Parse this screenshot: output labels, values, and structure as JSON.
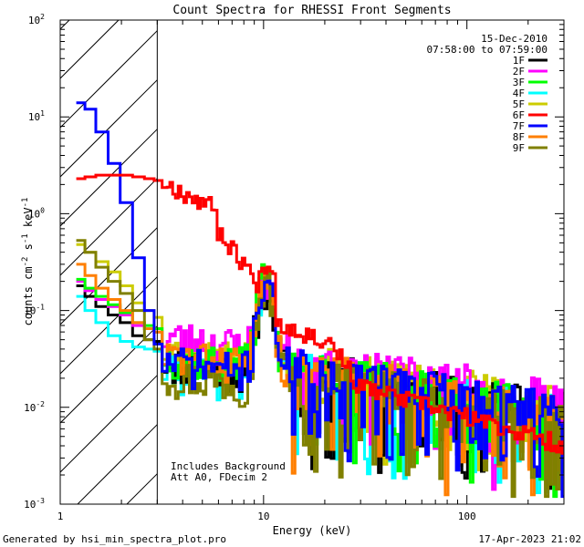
{
  "chart_data": {
    "type": "line",
    "title": "Count Spectra for RHESSI Front Segments",
    "xlabel": "Energy (keV)",
    "ylabel": "counts cm",
    "ylabel_parts": {
      "base": "counts cm",
      "exp1": "-2",
      "mid": " s",
      "exp2": "-1",
      "unit": " keV",
      "exp3": "-1"
    },
    "xscale": "log",
    "yscale": "log",
    "xlim": [
      1,
      300
    ],
    "ylim": [
      0.001,
      100
    ],
    "x_ticks": [
      {
        "value": 1,
        "label": "1"
      },
      {
        "value": 10,
        "label": "10"
      },
      {
        "value": 100,
        "label": "100"
      }
    ],
    "y_ticks": [
      {
        "value": 0.001,
        "base": "10",
        "exp": "-3"
      },
      {
        "value": 0.01,
        "base": "10",
        "exp": "-2"
      },
      {
        "value": 0.1,
        "base": "10",
        "exp": "-1"
      },
      {
        "value": 1,
        "base": "10",
        "exp": "0"
      },
      {
        "value": 10,
        "base": "10",
        "exp": "1"
      },
      {
        "value": 100,
        "base": "10",
        "exp": "2"
      }
    ],
    "date": "15-Dec-2010",
    "time_range": "07:58:00 to 07:59:00",
    "excluded_region_max_keV": 3,
    "annotations": [
      "Includes Background",
      "Att A0, FDecim 2"
    ],
    "legend_position": "top-right",
    "series": [
      {
        "name": "1F",
        "color": "#000000",
        "low": [
          0.18,
          0.14,
          0.11,
          0.09,
          0.075,
          0.055,
          0.05,
          0.048
        ],
        "mid": 0.03,
        "peak": 0.15,
        "tail": 0.03,
        "seed": 11
      },
      {
        "name": "2F",
        "color": "#ff00ff",
        "low": [
          0.2,
          0.16,
          0.13,
          0.11,
          0.09,
          0.07,
          0.065,
          0.06
        ],
        "mid": 0.055,
        "peak": 0.19,
        "tail": 0.04,
        "seed": 23
      },
      {
        "name": "3F",
        "color": "#00ff00",
        "low": [
          0.21,
          0.17,
          0.14,
          0.115,
          0.095,
          0.075,
          0.07,
          0.065
        ],
        "mid": 0.035,
        "peak": 0.24,
        "tail": 0.03,
        "seed": 37
      },
      {
        "name": "4F",
        "color": "#00ffff",
        "low": [
          0.14,
          0.1,
          0.075,
          0.055,
          0.048,
          0.042,
          0.04,
          0.038
        ],
        "mid": 0.025,
        "peak": 0.13,
        "tail": 0.028,
        "seed": 41
      },
      {
        "name": "5F",
        "color": "#cccc00",
        "low": [
          0.48,
          0.4,
          0.32,
          0.25,
          0.18,
          0.12,
          0.1,
          0.085
        ],
        "mid": 0.04,
        "peak": 0.2,
        "tail": 0.035,
        "seed": 53
      },
      {
        "name": "6F",
        "color": "#ff0000",
        "low": [
          2.3,
          2.4,
          2.5,
          2.5,
          2.5,
          2.4,
          2.3,
          2.2
        ],
        "mid": 1.0,
        "peak": 0.2,
        "tail": 0.07,
        "seed": 67
      },
      {
        "name": "7F",
        "color": "#0000ff",
        "low": [
          14,
          12,
          7,
          3.3,
          1.3,
          0.35,
          0.1,
          0.045
        ],
        "mid": 0.03,
        "peak": 0.18,
        "tail": 0.03,
        "seed": 71
      },
      {
        "name": "8F",
        "color": "#ff7f00",
        "low": [
          0.3,
          0.23,
          0.17,
          0.13,
          0.1,
          0.075,
          0.065,
          0.06
        ],
        "mid": 0.035,
        "peak": 0.17,
        "tail": 0.03,
        "seed": 83
      },
      {
        "name": "9F",
        "color": "#808000",
        "low": [
          0.53,
          0.4,
          0.28,
          0.2,
          0.15,
          0.1,
          0.05,
          0.04
        ],
        "mid": 0.022,
        "peak": 0.16,
        "tail": 0.025,
        "seed": 97
      }
    ]
  },
  "footer": {
    "generated_by": "Generated by hsi_min_spectra_plot.pro",
    "timestamp": "17-Apr-2023 21:02"
  }
}
